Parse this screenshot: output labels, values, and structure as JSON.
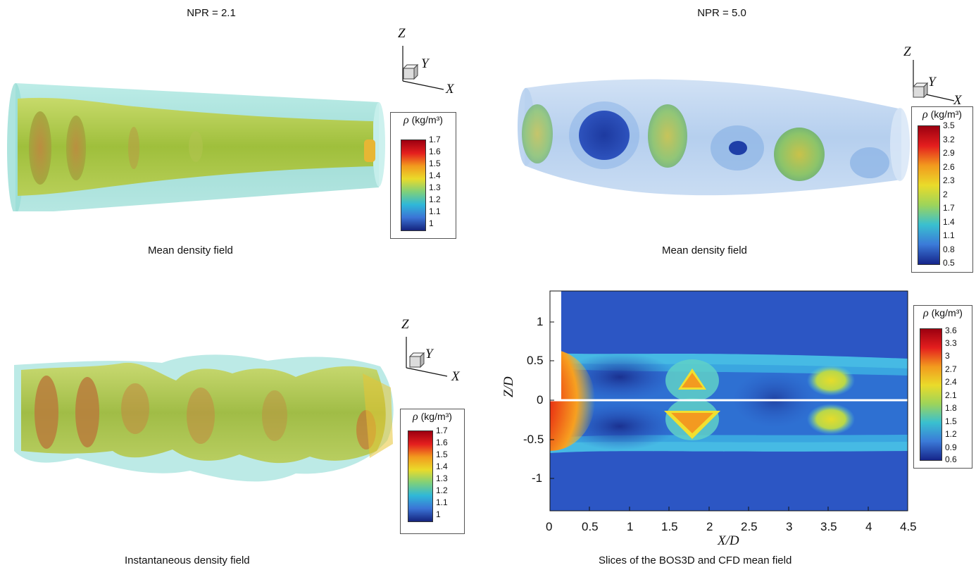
{
  "left_column": {
    "heading": "NPR = 2.1",
    "top_caption": "Mean density field",
    "bottom_caption": "Instantaneous density field",
    "colorbar": {
      "title_symbol": "ρ",
      "title_unit": "(kg/m³)",
      "ticks": [
        "1.7",
        "1.6",
        "1.5",
        "1.4",
        "1.3",
        "1.2",
        "1.1",
        "1"
      ]
    }
  },
  "right_column": {
    "heading": "NPR = 5.0",
    "top_caption": "Mean density field",
    "bottom_caption": "Slices of the BOS3D and CFD mean field",
    "colorbar_top": {
      "title_symbol": "ρ",
      "title_unit": "(kg/m³)",
      "ticks": [
        "3.5",
        "3.2",
        "2.9",
        "2.6",
        "2.3",
        "2",
        "1.7",
        "1.4",
        "1.1",
        "0.8",
        "0.5"
      ]
    },
    "colorbar_bottom": {
      "title_symbol": "ρ",
      "title_unit": "(kg/m³)",
      "ticks": [
        "3.6",
        "3.3",
        "3",
        "2.7",
        "2.4",
        "2.1",
        "1.8",
        "1.5",
        "1.2",
        "0.9",
        "0.6"
      ]
    }
  },
  "triad": {
    "z": "Z",
    "y": "Y",
    "x": "X"
  },
  "chart_data": {
    "type": "heatmap",
    "xlabel": "X/D",
    "ylabel": "Z/D",
    "xlim": [
      0,
      4.5
    ],
    "ylim": [
      -1.4,
      1.4
    ],
    "x_ticks": [
      "0",
      "0.5",
      "1",
      "1.5",
      "2",
      "2.5",
      "3",
      "3.5",
      "4",
      "4.5"
    ],
    "y_ticks": [
      "1",
      "0.5",
      "0",
      "-0.5",
      "-1"
    ],
    "colorbar_range": [
      0.6,
      3.6
    ]
  },
  "colors": {
    "bos_tube": "#8fdcd6",
    "iso_green": "#a8c84a",
    "iso_orange": "#c9823a",
    "field_blue": "#2c55c4"
  }
}
